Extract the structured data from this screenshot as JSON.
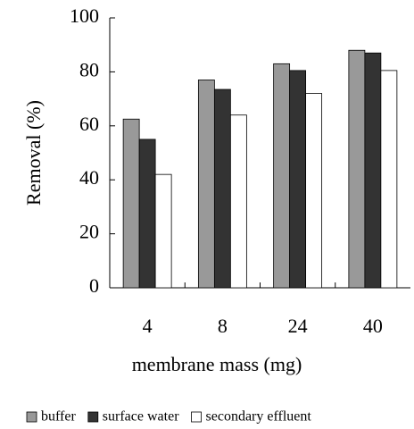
{
  "chart_data": {
    "type": "bar",
    "xlabel": "membrane mass (mg)",
    "ylabel": "Removal (%)",
    "categories": [
      "4",
      "8",
      "24",
      "40"
    ],
    "series": [
      {
        "name": "buffer",
        "color": "#999999",
        "values": [
          62.5,
          77,
          83,
          88
        ]
      },
      {
        "name": "surface water",
        "color": "#333333",
        "values": [
          55,
          73.5,
          80.5,
          87
        ]
      },
      {
        "name": "secondary effluent",
        "color": "#ffffff",
        "values": [
          42,
          64,
          72,
          80.5
        ]
      }
    ],
    "ylim": [
      0,
      100
    ],
    "yticks": [
      0,
      20,
      40,
      60,
      80,
      100
    ],
    "grid": false,
    "legend": "bottom"
  }
}
